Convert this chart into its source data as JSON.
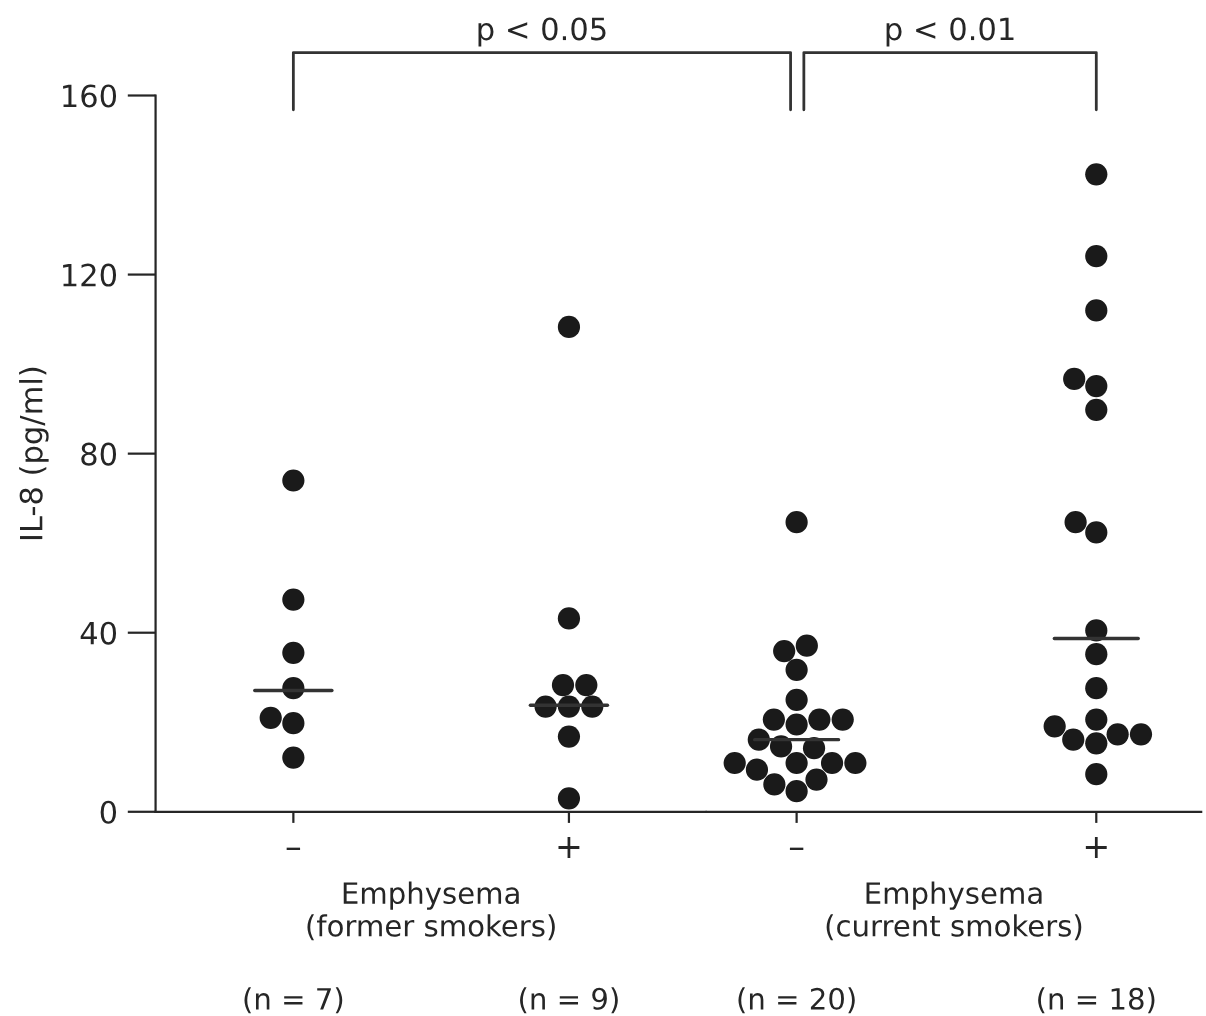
{
  "chart_data": [
    {
      "type": "scatter",
      "ylabel": "IL-8 (pg/ml)",
      "xlabel": "Emphysema\n(former smokers)",
      "categories": [
        "–",
        "+"
      ],
      "series": [
        {
          "color": "#1a1a1a",
          "x": [
            "–",
            "–",
            "–",
            "–",
            "–",
            "–",
            "–"
          ],
          "values": [
            74,
            47.4,
            35.5,
            27.6,
            19.8,
            21.0,
            12.1
          ]
        },
        {
          "color": "#1a1a1a",
          "x": [
            "+",
            "+",
            "+",
            "+",
            "+",
            "+",
            "+",
            "+",
            "+"
          ],
          "values": [
            108.3,
            43.2,
            28.3,
            28.3,
            23.5,
            23.5,
            23.5,
            16.8,
            3.0
          ]
        }
      ],
      "ref_lines": [
        {
          "axis": "y",
          "value": 27.1,
          "color": "#333333"
        },
        {
          "axis": "y",
          "value": 23.8,
          "color": "#333333"
        }
      ],
      "ylim": [
        0,
        160
      ],
      "yticks": [
        0,
        40,
        80,
        120,
        160
      ],
      "grid": false,
      "annotations": [
        "p < 0.05",
        "(n = 7)",
        "(n = 9)"
      ]
    },
    {
      "type": "scatter",
      "xlabel": "Emphysema\n(current smokers)",
      "tick_labels": "x",
      "categories": [
        "–",
        "+"
      ],
      "series": [
        {
          "color": "#1a1a1a",
          "x": [
            "–",
            "–",
            "–",
            "–",
            "–",
            "–",
            "–",
            "–",
            "–",
            "–",
            "–",
            "–",
            "–",
            "–",
            "–",
            "–",
            "–",
            "–",
            "–",
            "–"
          ],
          "values": [
            64.7,
            37.1,
            35.9,
            31.7,
            25.0,
            20.6,
            20.6,
            20.6,
            19.5,
            16.1,
            14.6,
            14.2,
            10.9,
            10.9,
            10.9,
            10.9,
            9.4,
            7.2,
            6.1,
            4.6
          ]
        },
        {
          "color": "#1a1a1a",
          "x": [
            "+",
            "+",
            "+",
            "+",
            "+",
            "+",
            "+",
            "+",
            "+",
            "+",
            "+",
            "+",
            "+",
            "+",
            "+",
            "+",
            "+",
            "+"
          ],
          "values": [
            142.4,
            124.1,
            112.0,
            96.7,
            95.1,
            89.8,
            64.7,
            62.4,
            40.5,
            35.2,
            27.6,
            20.6,
            17.3,
            17.3,
            19.1,
            16.1,
            15.3,
            8.4
          ]
        }
      ],
      "ref_lines": [
        {
          "axis": "y",
          "value": 16.1,
          "color": "#333333"
        },
        {
          "axis": "y",
          "value": 38.7,
          "color": "#333333"
        }
      ],
      "ylim": [
        0,
        160
      ],
      "yticks": [
        0,
        40,
        80,
        120,
        160
      ],
      "grid": false,
      "annotations": [
        "p < 0.01",
        "(n = 20)",
        "(n = 18)"
      ]
    }
  ]
}
